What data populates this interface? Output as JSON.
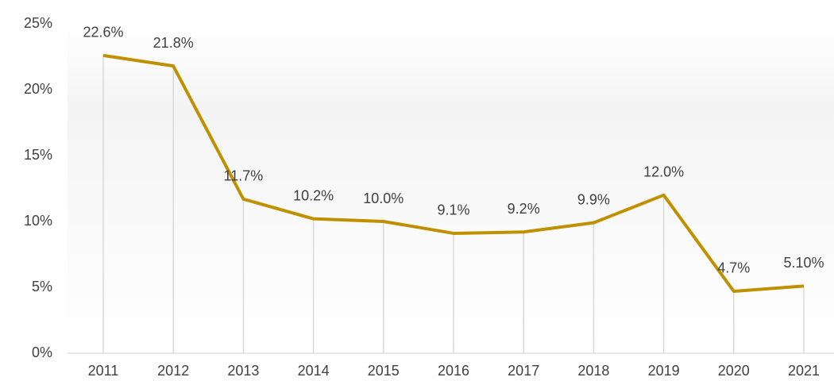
{
  "chart_data": {
    "type": "line",
    "categories": [
      "2011",
      "2012",
      "2013",
      "2014",
      "2015",
      "2016",
      "2017",
      "2018",
      "2019",
      "2020",
      "2021"
    ],
    "values": [
      22.6,
      21.8,
      11.7,
      10.2,
      10.0,
      9.1,
      9.2,
      9.9,
      12.0,
      4.7,
      5.1
    ],
    "value_labels": [
      "22.6%",
      "21.8%",
      "11.7%",
      "10.2%",
      "10.0%",
      "9.1%",
      "9.2%",
      "9.9%",
      "12.0%",
      "4.7%",
      "5.10%"
    ],
    "color": "#bf9000",
    "ylim": [
      0,
      25
    ],
    "yticks": [
      {
        "value": 0,
        "label": "0%"
      },
      {
        "value": 5,
        "label": "5%"
      },
      {
        "value": 10,
        "label": "10%"
      },
      {
        "value": 15,
        "label": "15%"
      },
      {
        "value": 20,
        "label": "20%"
      },
      {
        "value": 25,
        "label": "25%"
      }
    ],
    "grid": false
  }
}
